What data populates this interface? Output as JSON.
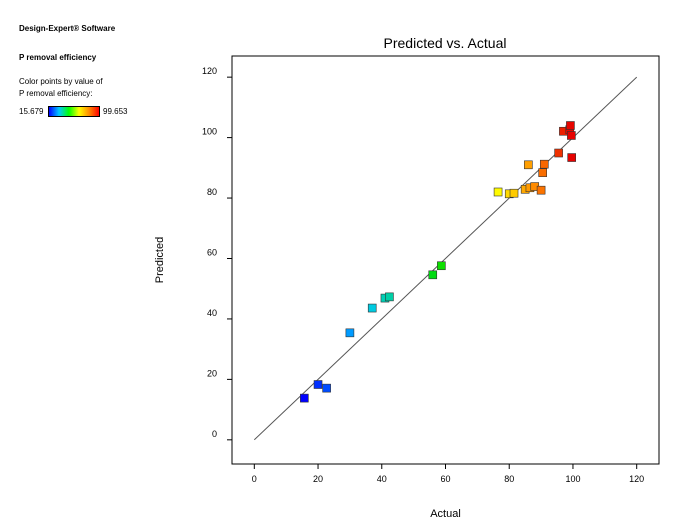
{
  "software": "Design-Expert® Software",
  "response": "P removal efficiency",
  "color_note_line1": "Color points by value of",
  "color_note_line2": "P removal efficiency:",
  "color_min": "15.679",
  "color_max": "99.653",
  "chart_data": {
    "type": "scatter",
    "title": "Predicted vs. Actual",
    "xlabel": "Actual",
    "ylabel": "Predicted",
    "xlim": [
      -7,
      127
    ],
    "ylim": [
      -8,
      127
    ],
    "xticks": [
      0,
      20,
      40,
      60,
      80,
      100,
      120
    ],
    "yticks": [
      0,
      20,
      40,
      60,
      80,
      100,
      120
    ],
    "reference_line": [
      [
        0,
        0
      ],
      [
        120,
        120
      ]
    ],
    "color_range": [
      15.679,
      99.653
    ],
    "points": [
      {
        "x": 15.7,
        "y": 13.8
      },
      {
        "x": 20.0,
        "y": 18.3
      },
      {
        "x": 22.7,
        "y": 17.1
      },
      {
        "x": 30.0,
        "y": 35.4
      },
      {
        "x": 37.0,
        "y": 43.6
      },
      {
        "x": 41.0,
        "y": 46.9
      },
      {
        "x": 42.4,
        "y": 47.3
      },
      {
        "x": 56.0,
        "y": 54.6
      },
      {
        "x": 58.7,
        "y": 57.6
      },
      {
        "x": 76.5,
        "y": 82.0
      },
      {
        "x": 80.0,
        "y": 81.4
      },
      {
        "x": 81.5,
        "y": 81.6
      },
      {
        "x": 85.0,
        "y": 82.9
      },
      {
        "x": 86.5,
        "y": 83.4
      },
      {
        "x": 88.0,
        "y": 83.8
      },
      {
        "x": 90.0,
        "y": 82.6
      },
      {
        "x": 86.0,
        "y": 91.0
      },
      {
        "x": 90.5,
        "y": 88.4
      },
      {
        "x": 91.0,
        "y": 91.2
      },
      {
        "x": 95.5,
        "y": 94.9
      },
      {
        "x": 97.0,
        "y": 102.1
      },
      {
        "x": 99.0,
        "y": 102.6
      },
      {
        "x": 99.2,
        "y": 104.0
      },
      {
        "x": 99.5,
        "y": 100.7
      },
      {
        "x": 99.6,
        "y": 93.4
      }
    ]
  }
}
